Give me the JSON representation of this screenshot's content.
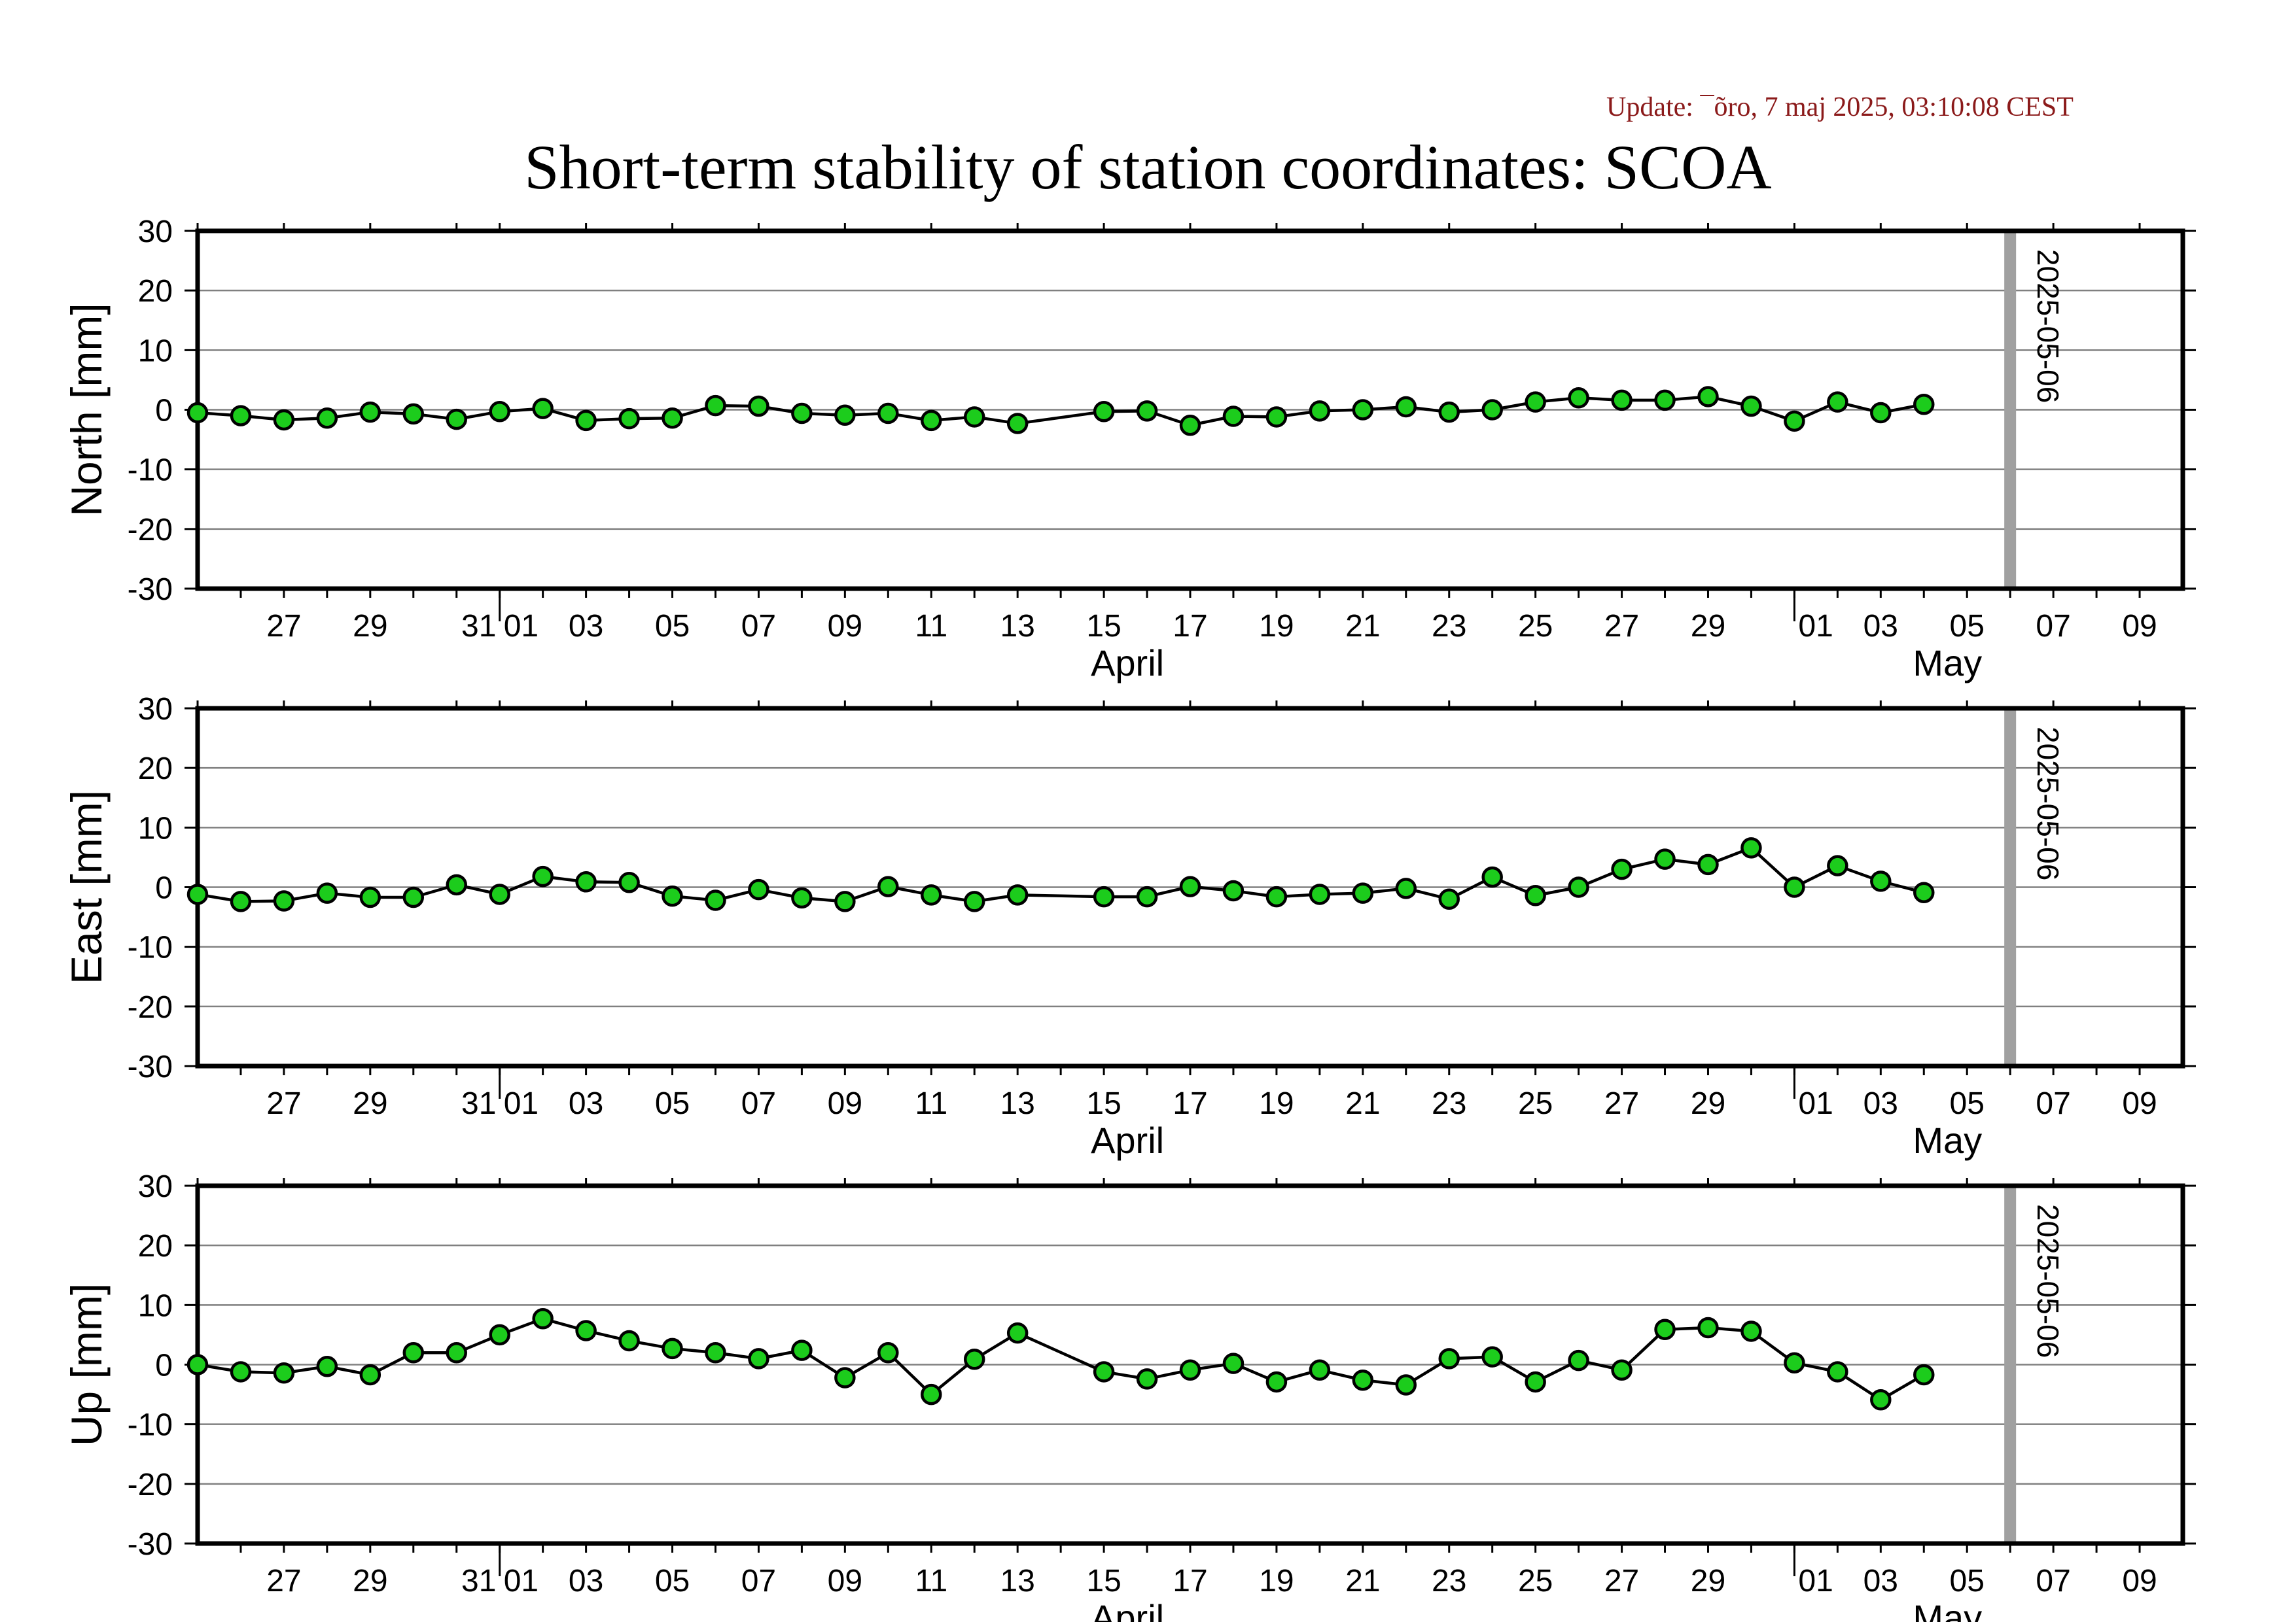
{
  "update": "Update: ¯õro, 7 maj 2025, 03:10:08 CEST",
  "title": "Short-term stability of station coordinates: SCOA",
  "chart_data": [
    {
      "type": "line",
      "ylabel": "North [mm]",
      "ylim": [
        -30,
        30
      ],
      "yticks": [
        30,
        20,
        10,
        0,
        -10,
        -20,
        -30
      ],
      "xlim": [
        "2025-03-25",
        "2025-05-10"
      ],
      "marker_date": "2025-05-06",
      "month_labels": [
        "April",
        "May"
      ],
      "x": [
        "2025-03-25",
        "2025-03-26",
        "2025-03-27",
        "2025-03-28",
        "2025-03-29",
        "2025-03-30",
        "2025-03-31",
        "2025-04-01",
        "2025-04-02",
        "2025-04-03",
        "2025-04-04",
        "2025-04-05",
        "2025-04-06",
        "2025-04-07",
        "2025-04-08",
        "2025-04-09",
        "2025-04-10",
        "2025-04-11",
        "2025-04-12",
        "2025-04-13",
        "2025-04-15",
        "2025-04-16",
        "2025-04-17",
        "2025-04-18",
        "2025-04-19",
        "2025-04-20",
        "2025-04-21",
        "2025-04-22",
        "2025-04-23",
        "2025-04-24",
        "2025-04-25",
        "2025-04-26",
        "2025-04-27",
        "2025-04-28",
        "2025-04-29",
        "2025-04-30",
        "2025-05-01",
        "2025-05-02",
        "2025-05-03",
        "2025-05-04"
      ],
      "values": [
        -0.5,
        -1.0,
        -1.7,
        -1.4,
        -0.4,
        -0.7,
        -1.6,
        -0.3,
        0.2,
        -1.8,
        -1.5,
        -1.4,
        0.7,
        0.6,
        -0.6,
        -0.9,
        -0.6,
        -1.8,
        -1.2,
        -2.3,
        -0.3,
        -0.2,
        -2.6,
        -1.1,
        -1.2,
        -0.2,
        0.0,
        0.5,
        -0.4,
        0.0,
        1.3,
        2.0,
        1.6,
        1.6,
        2.2,
        0.6,
        -1.9,
        1.3,
        -0.5,
        0.9
      ]
    },
    {
      "type": "line",
      "ylabel": "East [mm]",
      "ylim": [
        -30,
        30
      ],
      "yticks": [
        30,
        20,
        10,
        0,
        -10,
        -20,
        -30
      ],
      "xlim": [
        "2025-03-25",
        "2025-05-10"
      ],
      "marker_date": "2025-05-06",
      "month_labels": [
        "April",
        "May"
      ],
      "x": [
        "2025-03-25",
        "2025-03-26",
        "2025-03-27",
        "2025-03-28",
        "2025-03-29",
        "2025-03-30",
        "2025-03-31",
        "2025-04-01",
        "2025-04-02",
        "2025-04-03",
        "2025-04-04",
        "2025-04-05",
        "2025-04-06",
        "2025-04-07",
        "2025-04-08",
        "2025-04-09",
        "2025-04-10",
        "2025-04-11",
        "2025-04-12",
        "2025-04-13",
        "2025-04-15",
        "2025-04-16",
        "2025-04-17",
        "2025-04-18",
        "2025-04-19",
        "2025-04-20",
        "2025-04-21",
        "2025-04-22",
        "2025-04-23",
        "2025-04-24",
        "2025-04-25",
        "2025-04-26",
        "2025-04-27",
        "2025-04-28",
        "2025-04-29",
        "2025-04-30",
        "2025-05-01",
        "2025-05-02",
        "2025-05-03",
        "2025-05-04"
      ],
      "values": [
        -1.2,
        -2.4,
        -2.3,
        -1.0,
        -1.7,
        -1.7,
        0.4,
        -1.2,
        1.8,
        0.9,
        0.8,
        -1.5,
        -2.2,
        -0.4,
        -1.8,
        -2.4,
        0.1,
        -1.3,
        -2.4,
        -1.3,
        -1.6,
        -1.6,
        0.1,
        -0.6,
        -1.6,
        -1.2,
        -1.0,
        -0.2,
        -2.0,
        1.7,
        -1.4,
        0.0,
        3.0,
        4.7,
        3.8,
        6.6,
        0.0,
        3.6,
        1.0,
        -0.9
      ]
    },
    {
      "type": "line",
      "ylabel": "Up [mm]",
      "ylim": [
        -30,
        30
      ],
      "yticks": [
        30,
        20,
        10,
        0,
        -10,
        -20,
        -30
      ],
      "xlim": [
        "2025-03-25",
        "2025-05-10"
      ],
      "marker_date": "2025-05-06",
      "month_labels": [
        "April",
        "May"
      ],
      "x": [
        "2025-03-25",
        "2025-03-26",
        "2025-03-27",
        "2025-03-28",
        "2025-03-29",
        "2025-03-30",
        "2025-03-31",
        "2025-04-01",
        "2025-04-02",
        "2025-04-03",
        "2025-04-04",
        "2025-04-05",
        "2025-04-06",
        "2025-04-07",
        "2025-04-08",
        "2025-04-09",
        "2025-04-10",
        "2025-04-11",
        "2025-04-12",
        "2025-04-13",
        "2025-04-15",
        "2025-04-16",
        "2025-04-17",
        "2025-04-18",
        "2025-04-19",
        "2025-04-20",
        "2025-04-21",
        "2025-04-22",
        "2025-04-23",
        "2025-04-24",
        "2025-04-25",
        "2025-04-26",
        "2025-04-27",
        "2025-04-28",
        "2025-04-29",
        "2025-04-30",
        "2025-05-01",
        "2025-05-02",
        "2025-05-03",
        "2025-05-04"
      ],
      "values": [
        0.0,
        -1.2,
        -1.4,
        -0.3,
        -1.7,
        2.0,
        2.0,
        5.0,
        7.7,
        5.7,
        4.0,
        2.7,
        2.0,
        1.0,
        2.4,
        -2.2,
        2.0,
        -5.0,
        0.9,
        5.3,
        -1.2,
        -2.4,
        -0.9,
        0.2,
        -2.9,
        -0.9,
        -2.6,
        -3.4,
        1.0,
        1.3,
        -2.9,
        0.7,
        -0.9,
        5.9,
        6.2,
        5.6,
        0.3,
        -1.2,
        -5.9,
        -1.7
      ]
    }
  ],
  "colors": {
    "point_fill": "#1ccc1c",
    "marker_line": "#a0a0a0",
    "grid": "#808080",
    "update_text": "#8b1a1a"
  }
}
